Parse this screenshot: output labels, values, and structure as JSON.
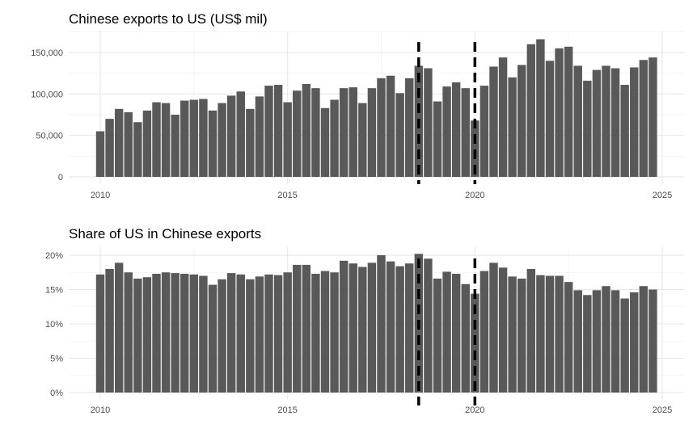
{
  "chart_data": [
    {
      "type": "bar",
      "title": "Chinese exports to US (US$ mil)",
      "xlabel": "",
      "ylabel": "",
      "ylim": [
        0,
        175000
      ],
      "xlim": [
        2009.5,
        2025.6
      ],
      "x_ticks": [
        2010,
        2015,
        2020,
        2025
      ],
      "y_ticks": [
        0,
        50000,
        100000,
        150000
      ],
      "y_tick_labels": [
        "0",
        "50,000",
        "100,000",
        "150,000"
      ],
      "grid": true,
      "bar_color": "#595959",
      "vlines": [
        2018.5,
        2020.0
      ],
      "vline_style": "dashed black",
      "x": [
        2010.0,
        2010.25,
        2010.5,
        2010.75,
        2011.0,
        2011.25,
        2011.5,
        2011.75,
        2012.0,
        2012.25,
        2012.5,
        2012.75,
        2013.0,
        2013.25,
        2013.5,
        2013.75,
        2014.0,
        2014.25,
        2014.5,
        2014.75,
        2015.0,
        2015.25,
        2015.5,
        2015.75,
        2016.0,
        2016.25,
        2016.5,
        2016.75,
        2017.0,
        2017.25,
        2017.5,
        2017.75,
        2018.0,
        2018.25,
        2018.5,
        2018.75,
        2019.0,
        2019.25,
        2019.5,
        2019.75,
        2020.0,
        2020.25,
        2020.5,
        2020.75,
        2021.0,
        2021.25,
        2021.5,
        2021.75,
        2022.0,
        2022.25,
        2022.5,
        2022.75,
        2023.0,
        2023.25,
        2023.5,
        2023.75,
        2024.0,
        2024.25,
        2024.5,
        2024.75
      ],
      "values": [
        55000,
        70000,
        82000,
        78000,
        66000,
        80000,
        90000,
        89000,
        75000,
        92000,
        93000,
        94000,
        80000,
        89000,
        98000,
        103000,
        82000,
        97000,
        110000,
        111000,
        90000,
        104000,
        112000,
        107000,
        83000,
        93000,
        107000,
        108000,
        89000,
        107000,
        119000,
        122000,
        101000,
        119000,
        134000,
        131000,
        91000,
        109000,
        114000,
        107000,
        68000,
        110000,
        133000,
        144000,
        120000,
        135000,
        160000,
        166000,
        140000,
        155000,
        157000,
        134000,
        116000,
        129000,
        134000,
        131000,
        111000,
        132000,
        141000,
        144000
      ]
    },
    {
      "type": "bar",
      "title": "Share of US in Chinese exports",
      "xlabel": "",
      "ylabel": "",
      "ylim": [
        0,
        21
      ],
      "xlim": [
        2009.5,
        2025.6
      ],
      "x_ticks": [
        2010,
        2015,
        2020,
        2025
      ],
      "y_ticks": [
        0,
        5,
        10,
        15,
        20
      ],
      "y_tick_labels": [
        "0%",
        "5%",
        "10%",
        "15%",
        "20%"
      ],
      "grid": true,
      "bar_color": "#595959",
      "vlines": [
        2018.5,
        2020.0
      ],
      "vline_style": "dashed black",
      "x": [
        2010.0,
        2010.25,
        2010.5,
        2010.75,
        2011.0,
        2011.25,
        2011.5,
        2011.75,
        2012.0,
        2012.25,
        2012.5,
        2012.75,
        2013.0,
        2013.25,
        2013.5,
        2013.75,
        2014.0,
        2014.25,
        2014.5,
        2014.75,
        2015.0,
        2015.25,
        2015.5,
        2015.75,
        2016.0,
        2016.25,
        2016.5,
        2016.75,
        2017.0,
        2017.25,
        2017.5,
        2017.75,
        2018.0,
        2018.25,
        2018.5,
        2018.75,
        2019.0,
        2019.25,
        2019.5,
        2019.75,
        2020.0,
        2020.25,
        2020.5,
        2020.75,
        2021.0,
        2021.25,
        2021.5,
        2021.75,
        2022.0,
        2022.25,
        2022.5,
        2022.75,
        2023.0,
        2023.25,
        2023.5,
        2023.75,
        2024.0,
        2024.25,
        2024.5,
        2024.75
      ],
      "values": [
        17.2,
        18.0,
        18.9,
        17.5,
        16.6,
        16.8,
        17.3,
        17.5,
        17.4,
        17.3,
        17.2,
        17.0,
        15.7,
        16.5,
        17.4,
        17.2,
        16.5,
        16.9,
        17.2,
        17.1,
        17.5,
        18.6,
        18.6,
        17.3,
        17.7,
        17.5,
        19.2,
        18.8,
        18.3,
        18.9,
        20.0,
        19.1,
        18.4,
        18.8,
        20.2,
        19.5,
        16.6,
        17.6,
        17.3,
        15.8,
        14.4,
        17.7,
        18.9,
        18.2,
        16.9,
        16.6,
        18.0,
        17.1,
        17.0,
        17.0,
        16.1,
        14.9,
        14.2,
        14.9,
        15.5,
        14.9,
        13.7,
        14.6,
        15.5,
        15.0
      ]
    }
  ]
}
